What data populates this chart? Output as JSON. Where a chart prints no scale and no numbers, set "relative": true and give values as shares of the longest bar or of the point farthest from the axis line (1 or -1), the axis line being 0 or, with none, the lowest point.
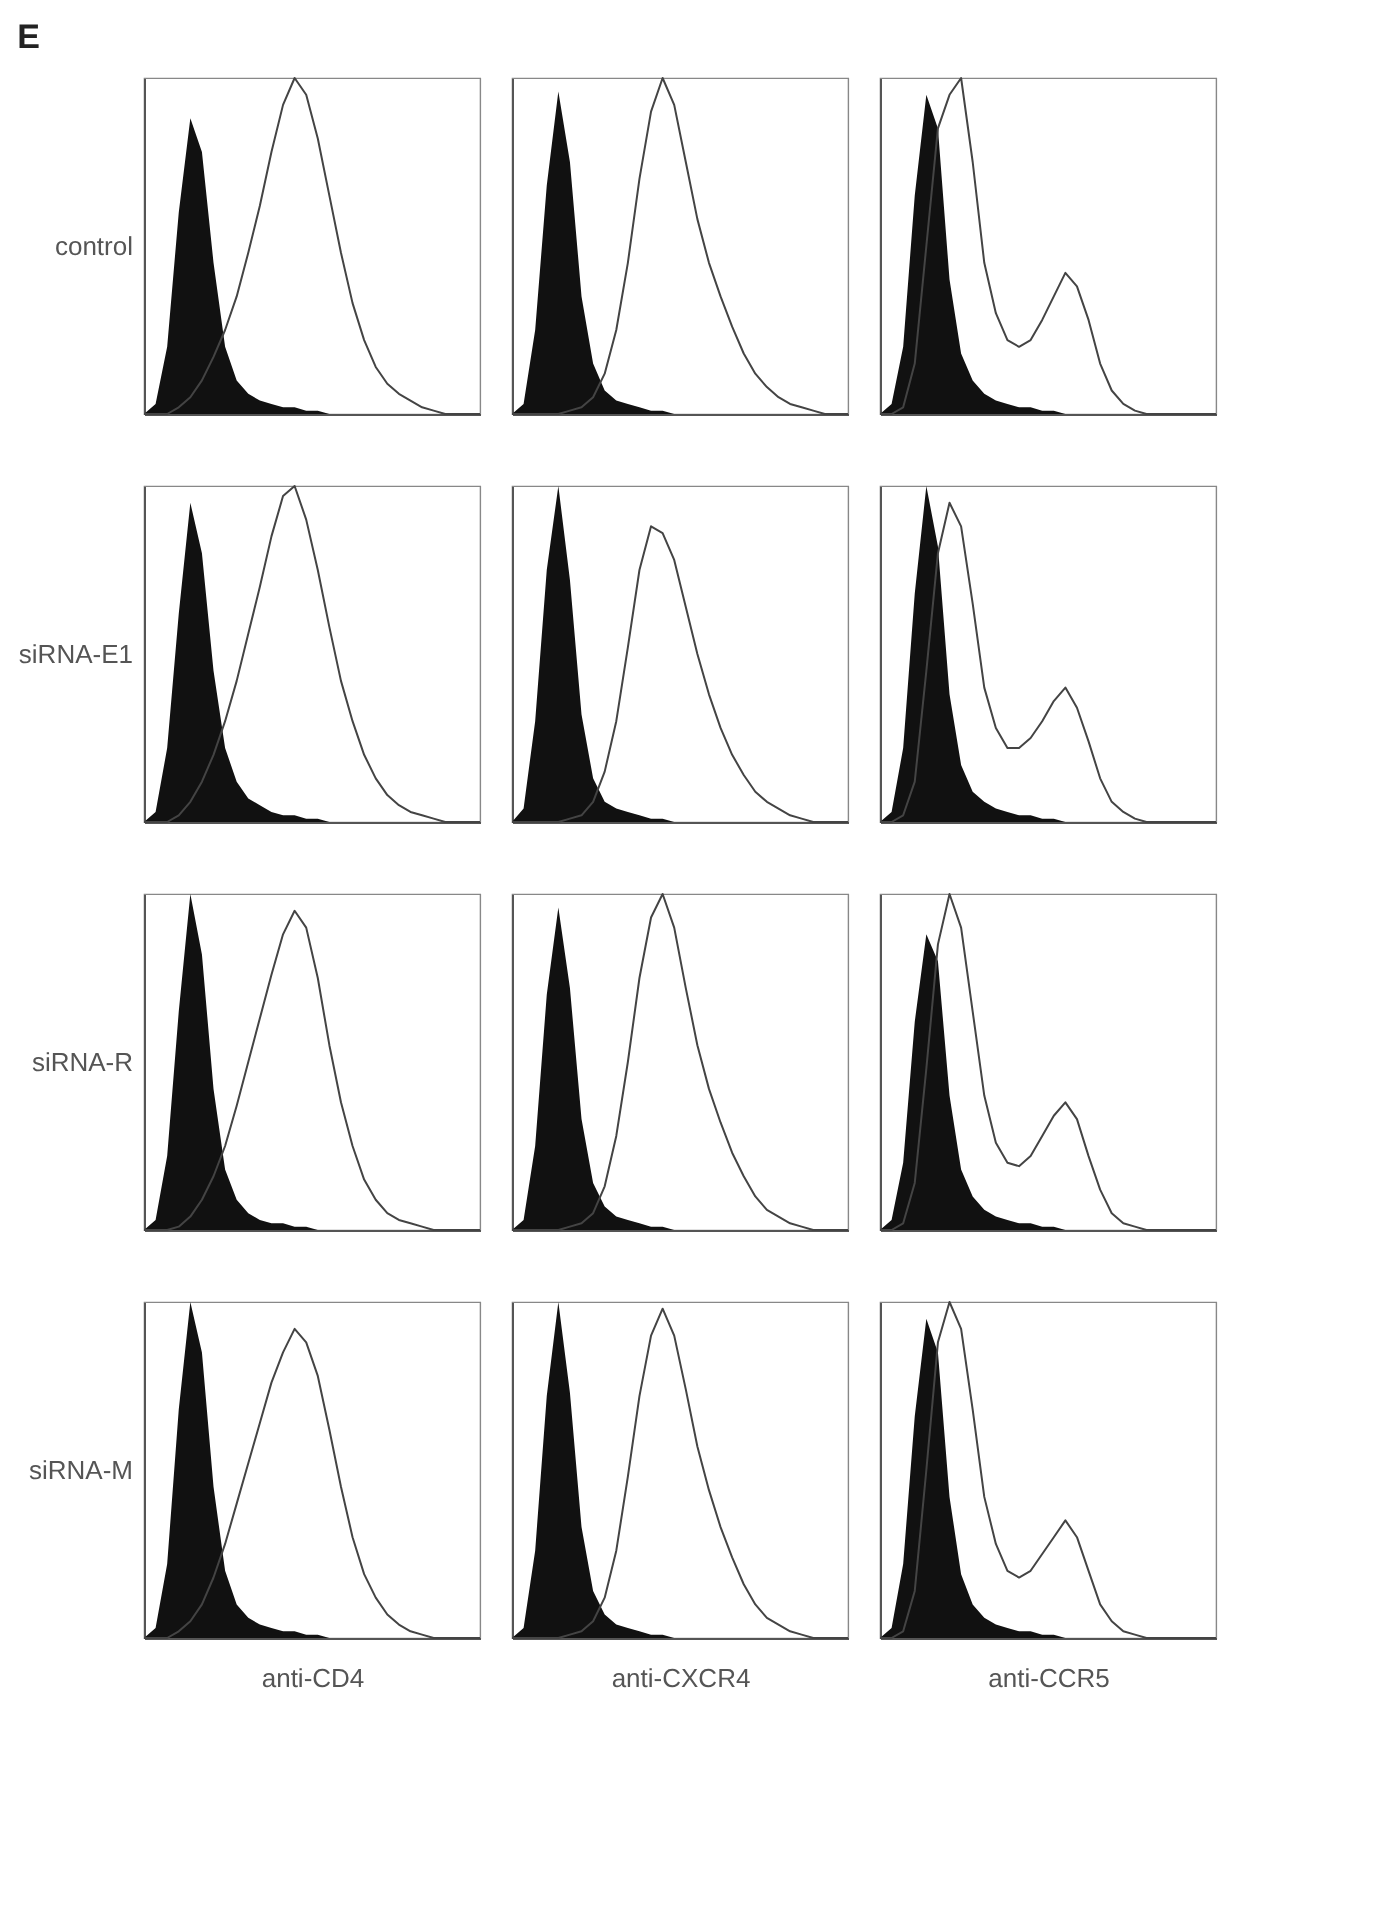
{
  "chart_data": [
    {
      "type": "area",
      "title": "E",
      "ylabel": "control",
      "relative": true,
      "tick_labels": false,
      "categories": [
        null,
        null,
        null,
        null,
        null,
        null,
        null,
        null,
        null,
        null,
        null,
        null,
        null,
        null,
        null,
        null,
        null,
        null,
        null,
        null,
        null,
        null,
        null,
        null,
        null,
        null,
        null,
        null,
        null,
        null
      ],
      "series": [
        {
          "type": "area",
          "color": "#111111",
          "values": [
            0,
            0.03,
            0.2,
            0.6,
            0.88,
            0.78,
            0.45,
            0.2,
            0.1,
            0.06,
            0.04,
            0.03,
            0.02,
            0.02,
            0.01,
            0.01,
            0,
            0,
            0,
            0,
            0,
            0,
            0,
            0,
            0,
            0,
            0,
            0,
            0,
            0
          ]
        },
        {
          "type": "line",
          "color": "#444444",
          "values": [
            0,
            0,
            0,
            0.02,
            0.05,
            0.1,
            0.17,
            0.25,
            0.35,
            0.48,
            0.62,
            0.78,
            0.92,
            1,
            0.95,
            0.82,
            0.65,
            0.48,
            0.33,
            0.22,
            0.14,
            0.09,
            0.06,
            0.04,
            0.02,
            0.01,
            0,
            0,
            0,
            0
          ]
        }
      ]
    },
    {
      "type": "area",
      "relative": true,
      "tick_labels": false,
      "categories": [
        null,
        null,
        null,
        null,
        null,
        null,
        null,
        null,
        null,
        null,
        null,
        null,
        null,
        null,
        null,
        null,
        null,
        null,
        null,
        null,
        null,
        null,
        null,
        null,
        null,
        null,
        null,
        null,
        null,
        null
      ],
      "series": [
        {
          "type": "area",
          "color": "#111111",
          "values": [
            0,
            0.03,
            0.25,
            0.68,
            0.96,
            0.75,
            0.35,
            0.15,
            0.07,
            0.04,
            0.03,
            0.02,
            0.01,
            0.01,
            0,
            0,
            0,
            0,
            0,
            0,
            0,
            0,
            0,
            0,
            0,
            0,
            0,
            0,
            0,
            0
          ]
        },
        {
          "type": "line",
          "color": "#444444",
          "values": [
            0,
            0,
            0,
            0,
            0,
            0.01,
            0.02,
            0.05,
            0.12,
            0.25,
            0.45,
            0.7,
            0.9,
            1,
            0.92,
            0.75,
            0.58,
            0.45,
            0.35,
            0.26,
            0.18,
            0.12,
            0.08,
            0.05,
            0.03,
            0.02,
            0.01,
            0,
            0,
            0
          ]
        }
      ]
    },
    {
      "type": "area",
      "relative": true,
      "tick_labels": false,
      "categories": [
        null,
        null,
        null,
        null,
        null,
        null,
        null,
        null,
        null,
        null,
        null,
        null,
        null,
        null,
        null,
        null,
        null,
        null,
        null,
        null,
        null,
        null,
        null,
        null,
        null,
        null,
        null,
        null,
        null,
        null
      ],
      "series": [
        {
          "type": "area",
          "color": "#111111",
          "values": [
            0,
            0.03,
            0.2,
            0.65,
            0.95,
            0.85,
            0.4,
            0.18,
            0.1,
            0.06,
            0.04,
            0.03,
            0.02,
            0.02,
            0.01,
            0.01,
            0,
            0,
            0,
            0,
            0,
            0,
            0,
            0,
            0,
            0,
            0,
            0,
            0,
            0
          ]
        },
        {
          "type": "line",
          "color": "#444444",
          "values": [
            0,
            0,
            0.02,
            0.15,
            0.5,
            0.85,
            0.95,
            1,
            0.75,
            0.45,
            0.3,
            0.22,
            0.2,
            0.22,
            0.28,
            0.35,
            0.42,
            0.38,
            0.28,
            0.15,
            0.07,
            0.03,
            0.01,
            0,
            0,
            0,
            0,
            0,
            0,
            0
          ]
        }
      ]
    },
    {
      "type": "area",
      "ylabel": "siRNA-E1",
      "relative": true,
      "tick_labels": false,
      "categories": [
        null,
        null,
        null,
        null,
        null,
        null,
        null,
        null,
        null,
        null,
        null,
        null,
        null,
        null,
        null,
        null,
        null,
        null,
        null,
        null,
        null,
        null,
        null,
        null,
        null,
        null,
        null,
        null,
        null,
        null
      ],
      "series": [
        {
          "type": "area",
          "color": "#111111",
          "values": [
            0,
            0.03,
            0.22,
            0.62,
            0.95,
            0.8,
            0.45,
            0.22,
            0.12,
            0.07,
            0.05,
            0.03,
            0.02,
            0.02,
            0.01,
            0.01,
            0,
            0,
            0,
            0,
            0,
            0,
            0,
            0,
            0,
            0,
            0,
            0,
            0,
            0
          ]
        },
        {
          "type": "line",
          "color": "#444444",
          "values": [
            0,
            0,
            0,
            0.02,
            0.06,
            0.12,
            0.2,
            0.3,
            0.42,
            0.56,
            0.7,
            0.85,
            0.97,
            1,
            0.9,
            0.75,
            0.58,
            0.42,
            0.3,
            0.2,
            0.13,
            0.08,
            0.05,
            0.03,
            0.02,
            0.01,
            0,
            0,
            0,
            0
          ]
        }
      ]
    },
    {
      "type": "area",
      "relative": true,
      "tick_labels": false,
      "categories": [
        null,
        null,
        null,
        null,
        null,
        null,
        null,
        null,
        null,
        null,
        null,
        null,
        null,
        null,
        null,
        null,
        null,
        null,
        null,
        null,
        null,
        null,
        null,
        null,
        null,
        null,
        null,
        null,
        null,
        null
      ],
      "series": [
        {
          "type": "area",
          "color": "#111111",
          "values": [
            0,
            0.04,
            0.3,
            0.75,
            1,
            0.72,
            0.32,
            0.13,
            0.06,
            0.04,
            0.03,
            0.02,
            0.01,
            0.01,
            0,
            0,
            0,
            0,
            0,
            0,
            0,
            0,
            0,
            0,
            0,
            0,
            0,
            0,
            0,
            0
          ]
        },
        {
          "type": "line",
          "color": "#444444",
          "values": [
            0,
            0,
            0,
            0,
            0,
            0.01,
            0.02,
            0.06,
            0.15,
            0.3,
            0.52,
            0.75,
            0.88,
            0.86,
            0.78,
            0.64,
            0.5,
            0.38,
            0.28,
            0.2,
            0.14,
            0.09,
            0.06,
            0.04,
            0.02,
            0.01,
            0,
            0,
            0,
            0
          ]
        }
      ]
    },
    {
      "type": "area",
      "relative": true,
      "tick_labels": false,
      "categories": [
        null,
        null,
        null,
        null,
        null,
        null,
        null,
        null,
        null,
        null,
        null,
        null,
        null,
        null,
        null,
        null,
        null,
        null,
        null,
        null,
        null,
        null,
        null,
        null,
        null,
        null,
        null,
        null,
        null,
        null
      ],
      "series": [
        {
          "type": "area",
          "color": "#111111",
          "values": [
            0,
            0.03,
            0.22,
            0.68,
            1,
            0.82,
            0.38,
            0.17,
            0.09,
            0.06,
            0.04,
            0.03,
            0.02,
            0.02,
            0.01,
            0.01,
            0,
            0,
            0,
            0,
            0,
            0,
            0,
            0,
            0,
            0,
            0,
            0,
            0,
            0
          ]
        },
        {
          "type": "line",
          "color": "#444444",
          "values": [
            0,
            0,
            0.02,
            0.12,
            0.45,
            0.8,
            0.95,
            0.88,
            0.65,
            0.4,
            0.28,
            0.22,
            0.22,
            0.25,
            0.3,
            0.36,
            0.4,
            0.34,
            0.24,
            0.13,
            0.06,
            0.03,
            0.01,
            0,
            0,
            0,
            0,
            0,
            0,
            0
          ]
        }
      ]
    },
    {
      "type": "area",
      "ylabel": "siRNA-R",
      "relative": true,
      "tick_labels": false,
      "categories": [
        null,
        null,
        null,
        null,
        null,
        null,
        null,
        null,
        null,
        null,
        null,
        null,
        null,
        null,
        null,
        null,
        null,
        null,
        null,
        null,
        null,
        null,
        null,
        null,
        null,
        null,
        null,
        null,
        null,
        null
      ],
      "series": [
        {
          "type": "area",
          "color": "#111111",
          "values": [
            0,
            0.03,
            0.22,
            0.65,
            1,
            0.82,
            0.42,
            0.18,
            0.09,
            0.05,
            0.03,
            0.02,
            0.02,
            0.01,
            0.01,
            0,
            0,
            0,
            0,
            0,
            0,
            0,
            0,
            0,
            0,
            0,
            0,
            0,
            0,
            0
          ]
        },
        {
          "type": "line",
          "color": "#444444",
          "values": [
            0,
            0,
            0,
            0.01,
            0.04,
            0.09,
            0.16,
            0.25,
            0.37,
            0.5,
            0.63,
            0.76,
            0.88,
            0.95,
            0.9,
            0.75,
            0.55,
            0.38,
            0.25,
            0.15,
            0.09,
            0.05,
            0.03,
            0.02,
            0.01,
            0,
            0,
            0,
            0,
            0
          ]
        }
      ]
    },
    {
      "type": "area",
      "relative": true,
      "tick_labels": false,
      "categories": [
        null,
        null,
        null,
        null,
        null,
        null,
        null,
        null,
        null,
        null,
        null,
        null,
        null,
        null,
        null,
        null,
        null,
        null,
        null,
        null,
        null,
        null,
        null,
        null,
        null,
        null,
        null,
        null,
        null,
        null
      ],
      "series": [
        {
          "type": "area",
          "color": "#111111",
          "values": [
            0,
            0.03,
            0.25,
            0.7,
            0.96,
            0.72,
            0.33,
            0.14,
            0.07,
            0.04,
            0.03,
            0.02,
            0.01,
            0.01,
            0,
            0,
            0,
            0,
            0,
            0,
            0,
            0,
            0,
            0,
            0,
            0,
            0,
            0,
            0,
            0
          ]
        },
        {
          "type": "line",
          "color": "#444444",
          "values": [
            0,
            0,
            0,
            0,
            0,
            0.01,
            0.02,
            0.05,
            0.13,
            0.28,
            0.5,
            0.75,
            0.93,
            1,
            0.9,
            0.72,
            0.55,
            0.42,
            0.32,
            0.23,
            0.16,
            0.1,
            0.06,
            0.04,
            0.02,
            0.01,
            0,
            0,
            0,
            0
          ]
        }
      ]
    },
    {
      "type": "area",
      "relative": true,
      "tick_labels": false,
      "categories": [
        null,
        null,
        null,
        null,
        null,
        null,
        null,
        null,
        null,
        null,
        null,
        null,
        null,
        null,
        null,
        null,
        null,
        null,
        null,
        null,
        null,
        null,
        null,
        null,
        null,
        null,
        null,
        null,
        null,
        null
      ],
      "series": [
        {
          "type": "area",
          "color": "#111111",
          "values": [
            0,
            0.03,
            0.2,
            0.62,
            0.88,
            0.8,
            0.4,
            0.18,
            0.1,
            0.06,
            0.04,
            0.03,
            0.02,
            0.02,
            0.01,
            0.01,
            0,
            0,
            0,
            0,
            0,
            0,
            0,
            0,
            0,
            0,
            0,
            0,
            0,
            0
          ]
        },
        {
          "type": "line",
          "color": "#444444",
          "values": [
            0,
            0,
            0.02,
            0.14,
            0.48,
            0.85,
            1,
            0.9,
            0.65,
            0.4,
            0.26,
            0.2,
            0.19,
            0.22,
            0.28,
            0.34,
            0.38,
            0.33,
            0.22,
            0.12,
            0.05,
            0.02,
            0.01,
            0,
            0,
            0,
            0,
            0,
            0,
            0
          ]
        }
      ]
    },
    {
      "type": "area",
      "ylabel": "siRNA-M",
      "relative": true,
      "tick_labels": false,
      "xlabel": "anti-CD4",
      "categories": [
        null,
        null,
        null,
        null,
        null,
        null,
        null,
        null,
        null,
        null,
        null,
        null,
        null,
        null,
        null,
        null,
        null,
        null,
        null,
        null,
        null,
        null,
        null,
        null,
        null,
        null,
        null,
        null,
        null,
        null
      ],
      "series": [
        {
          "type": "area",
          "color": "#111111",
          "values": [
            0,
            0.03,
            0.22,
            0.68,
            1,
            0.85,
            0.45,
            0.2,
            0.1,
            0.06,
            0.04,
            0.03,
            0.02,
            0.02,
            0.01,
            0.01,
            0,
            0,
            0,
            0,
            0,
            0,
            0,
            0,
            0,
            0,
            0,
            0,
            0,
            0
          ]
        },
        {
          "type": "line",
          "color": "#444444",
          "values": [
            0,
            0,
            0,
            0.02,
            0.05,
            0.1,
            0.18,
            0.28,
            0.4,
            0.52,
            0.64,
            0.76,
            0.85,
            0.92,
            0.88,
            0.78,
            0.62,
            0.45,
            0.3,
            0.19,
            0.12,
            0.07,
            0.04,
            0.02,
            0.01,
            0,
            0,
            0,
            0,
            0
          ]
        }
      ]
    },
    {
      "type": "area",
      "relative": true,
      "tick_labels": false,
      "xlabel": "anti-CXCR4",
      "categories": [
        null,
        null,
        null,
        null,
        null,
        null,
        null,
        null,
        null,
        null,
        null,
        null,
        null,
        null,
        null,
        null,
        null,
        null,
        null,
        null,
        null,
        null,
        null,
        null,
        null,
        null,
        null,
        null,
        null,
        null
      ],
      "series": [
        {
          "type": "area",
          "color": "#111111",
          "values": [
            0,
            0.03,
            0.26,
            0.72,
            1,
            0.73,
            0.33,
            0.14,
            0.07,
            0.04,
            0.03,
            0.02,
            0.01,
            0.01,
            0,
            0,
            0,
            0,
            0,
            0,
            0,
            0,
            0,
            0,
            0,
            0,
            0,
            0,
            0,
            0
          ]
        },
        {
          "type": "line",
          "color": "#444444",
          "values": [
            0,
            0,
            0,
            0,
            0,
            0.01,
            0.02,
            0.05,
            0.12,
            0.26,
            0.48,
            0.72,
            0.9,
            0.98,
            0.9,
            0.74,
            0.57,
            0.44,
            0.33,
            0.24,
            0.16,
            0.1,
            0.06,
            0.04,
            0.02,
            0.01,
            0,
            0,
            0,
            0
          ]
        }
      ]
    },
    {
      "type": "area",
      "relative": true,
      "tick_labels": false,
      "xlabel": "anti-CCR5",
      "categories": [
        null,
        null,
        null,
        null,
        null,
        null,
        null,
        null,
        null,
        null,
        null,
        null,
        null,
        null,
        null,
        null,
        null,
        null,
        null,
        null,
        null,
        null,
        null,
        null,
        null,
        null,
        null,
        null,
        null,
        null
      ],
      "series": [
        {
          "type": "area",
          "color": "#111111",
          "values": [
            0,
            0.03,
            0.22,
            0.66,
            0.95,
            0.85,
            0.42,
            0.19,
            0.1,
            0.06,
            0.04,
            0.03,
            0.02,
            0.02,
            0.01,
            0.01,
            0,
            0,
            0,
            0,
            0,
            0,
            0,
            0,
            0,
            0,
            0,
            0,
            0,
            0
          ]
        },
        {
          "type": "line",
          "color": "#444444",
          "values": [
            0,
            0,
            0.02,
            0.14,
            0.5,
            0.88,
            1,
            0.92,
            0.68,
            0.42,
            0.28,
            0.2,
            0.18,
            0.2,
            0.25,
            0.3,
            0.35,
            0.3,
            0.2,
            0.1,
            0.05,
            0.02,
            0.01,
            0,
            0,
            0,
            0,
            0,
            0,
            0
          ]
        }
      ]
    }
  ]
}
